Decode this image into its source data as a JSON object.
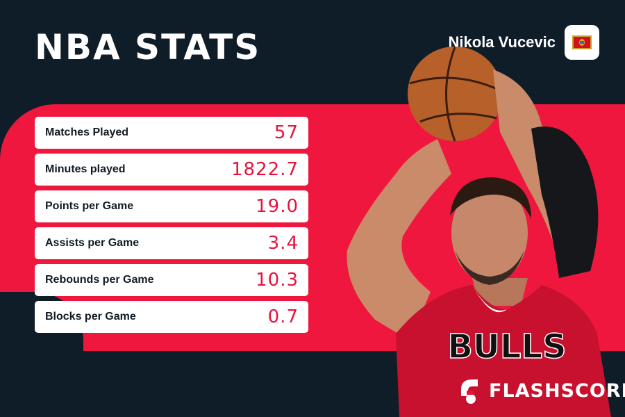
{
  "header": {
    "title": "NBA STATS",
    "player_name": "Nikola Vucevic",
    "flag_icon": "montenegro-flag-icon"
  },
  "stats": [
    {
      "label": "Matches Played",
      "value": "57"
    },
    {
      "label": "Minutes played",
      "value": "1822.7"
    },
    {
      "label": "Points per Game",
      "value": "19.0"
    },
    {
      "label": "Assists per Game",
      "value": "3.4"
    },
    {
      "label": "Rebounds per Game",
      "value": "10.3"
    },
    {
      "label": "Blocks per Game",
      "value": "0.7"
    }
  ],
  "jersey": {
    "team_text": "BULLS"
  },
  "logo": {
    "text": "FLASHSCORE"
  },
  "colors": {
    "background": "#0f1d29",
    "accent_red": "#f0173f",
    "value_red": "#e8123c",
    "card": "#ffffff"
  }
}
